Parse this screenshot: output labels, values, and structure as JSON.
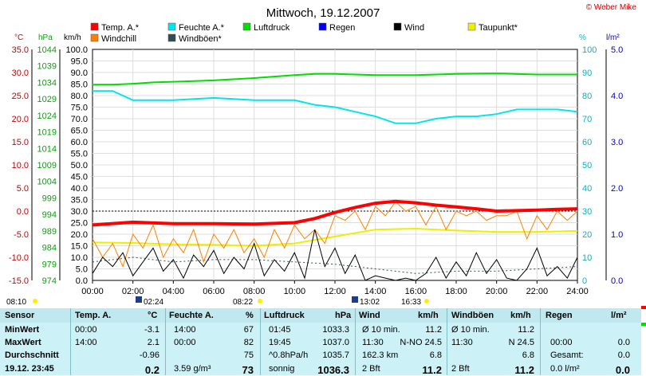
{
  "header": {
    "title": "Mittwoch, 19.12.2007",
    "credit": "© Weber Mike"
  },
  "legend": [
    {
      "label": "Temp. A.*",
      "color": "#ff0000"
    },
    {
      "label": "Feuchte A.*",
      "color": "#00e5ee"
    },
    {
      "label": "Luftdruck",
      "color": "#00dd00"
    },
    {
      "label": "Regen",
      "color": "#0000ff"
    },
    {
      "label": "Wind",
      "color": "#000000"
    },
    {
      "label": "Taupunkt*",
      "color": "#eeee00"
    },
    {
      "label": "Windchill",
      "color": "#ff8000"
    },
    {
      "label": "Windböen*",
      "color": "#2f4f4f"
    }
  ],
  "axis_units": {
    "temp": "°C",
    "pressure": "hPa",
    "wind": "km/h",
    "humidity": "%",
    "rain": "l/m²"
  },
  "time_markers": {
    "sunrise": "08:10",
    "transit": "02:24",
    "light": "08:22",
    "sun_max": "13:02",
    "sunset": "16:33"
  },
  "chart_data": {
    "type": "line",
    "x_label": "time",
    "x_ticks": [
      "00:00",
      "02:00",
      "04:00",
      "06:00",
      "08:00",
      "10:00",
      "12:00",
      "14:00",
      "16:00",
      "18:00",
      "20:00",
      "22:00",
      "24:00"
    ],
    "axes": {
      "temp": {
        "min": -15,
        "max": 35,
        "ticks": [
          "35.0",
          "30.0",
          "25.0",
          "20.0",
          "15.0",
          "10.0",
          "5.0",
          "0.0",
          "-5.0",
          "-10.0",
          "-15.0"
        ]
      },
      "pressure": {
        "min": 974,
        "max": 1044,
        "ticks": [
          "1044",
          "1039",
          "1034",
          "1029",
          "1024",
          "1019",
          "1014",
          "1009",
          "1004",
          "999",
          "994",
          "989",
          "984",
          "979",
          "974"
        ]
      },
      "wind": {
        "min": 0,
        "max": 100,
        "ticks": [
          "100.0",
          "95.0",
          "90.0",
          "85.0",
          "80.0",
          "75.0",
          "70.0",
          "65.0",
          "60.0",
          "55.0",
          "50.0",
          "45.0",
          "40.0",
          "35.0",
          "30.0",
          "25.0",
          "20.0",
          "15.0",
          "10.0",
          "5.0",
          "0.0"
        ]
      },
      "humidity": {
        "min": 0,
        "max": 100,
        "ticks": [
          "100",
          "90",
          "80",
          "70",
          "60",
          "50",
          "40",
          "30",
          "20",
          "10",
          "0"
        ]
      },
      "rain": {
        "min": 0,
        "max": 5,
        "ticks": [
          "5.0",
          "4.0",
          "3.0",
          "2.0",
          "1.0",
          "0.0"
        ]
      }
    },
    "series": [
      {
        "name": "Temp. A.*",
        "axis": "temp",
        "color": "#ff0000",
        "x": [
          0,
          2,
          4,
          6,
          8,
          10,
          11,
          12,
          13,
          14,
          15,
          16,
          17,
          18,
          19,
          20,
          21,
          22,
          23,
          24
        ],
        "y": [
          -3.0,
          -2.4,
          -2.7,
          -2.7,
          -2.8,
          -2.5,
          -1.6,
          -0.3,
          0.8,
          1.7,
          2.1,
          1.8,
          1.3,
          0.9,
          0.5,
          0.0,
          0.1,
          0.2,
          0.4,
          0.5
        ]
      },
      {
        "name": "Feuchte A.*",
        "axis": "humidity",
        "color": "#00e5ee",
        "x": [
          0,
          1,
          2,
          3,
          4,
          6,
          8,
          10,
          11,
          12,
          13,
          14,
          15,
          16,
          17,
          18,
          19,
          20,
          21,
          22,
          23,
          24
        ],
        "y": [
          82,
          82,
          78,
          78,
          78,
          79,
          78,
          78,
          76,
          75,
          73,
          71,
          68,
          68,
          70,
          71,
          71,
          72,
          74,
          74,
          74,
          73
        ]
      },
      {
        "name": "Luftdruck",
        "axis": "pressure",
        "color": "#00dd00",
        "x": [
          0,
          1,
          2,
          3,
          4,
          6,
          8,
          10,
          11,
          12,
          14,
          16,
          18,
          20,
          22,
          24
        ],
        "y": [
          1033.3,
          1033.3,
          1033.6,
          1034.0,
          1034.2,
          1034.6,
          1035.3,
          1036.2,
          1036.6,
          1036.6,
          1036.2,
          1036.2,
          1036.6,
          1036.7,
          1036.4,
          1036.4
        ]
      },
      {
        "name": "Taupunkt*",
        "axis": "temp",
        "color": "#eeee00",
        "x": [
          0,
          2,
          4,
          6,
          8,
          10,
          12,
          14,
          16,
          18,
          20,
          22,
          24
        ],
        "y": [
          -6.8,
          -6.9,
          -7.2,
          -7.3,
          -7.5,
          -7.0,
          -5.5,
          -4.0,
          -3.8,
          -4.2,
          -4.5,
          -4.5,
          -4.3
        ]
      },
      {
        "name": "Windchill",
        "axis": "temp",
        "color": "#ff8000",
        "x": [
          0,
          0.5,
          1,
          1.5,
          2,
          2.5,
          3,
          3.5,
          4,
          4.5,
          5,
          5.5,
          6,
          6.5,
          7,
          7.5,
          8,
          8.5,
          9,
          9.5,
          10,
          10.5,
          11,
          11.5,
          12,
          12.5,
          13,
          13.5,
          14,
          14.5,
          15,
          15.5,
          16,
          16.5,
          17,
          17.5,
          18,
          18.5,
          19,
          19.5,
          20,
          20.5,
          21,
          21.5,
          22,
          22.5,
          23,
          23.5,
          24
        ],
        "y": [
          -6,
          -10,
          -7,
          -12,
          -5,
          -8,
          -3,
          -10,
          -6,
          -9,
          -4,
          -11,
          -5,
          -8,
          -4,
          -9,
          -6,
          -10,
          -4,
          -8,
          -3,
          -6,
          -4,
          -7,
          -1,
          -2,
          0,
          -4,
          1,
          -1,
          2,
          0,
          1,
          -3,
          1,
          -4,
          0,
          -1,
          0,
          -2,
          -1,
          -1,
          0,
          -6,
          -1,
          -4,
          0,
          -2,
          0
        ]
      },
      {
        "name": "Wind",
        "axis": "wind",
        "color": "#000000",
        "x": [
          0,
          0.5,
          1,
          1.5,
          2,
          2.5,
          3,
          3.5,
          4,
          4.5,
          5,
          5.5,
          6,
          6.5,
          7,
          7.5,
          8,
          8.5,
          9,
          9.5,
          10,
          10.5,
          11,
          11.5,
          12,
          12.5,
          13,
          13.5,
          14,
          14.5,
          15,
          15.5,
          16,
          16.5,
          17,
          17.5,
          18,
          18.5,
          19,
          19.5,
          20,
          20.5,
          21,
          21.5,
          22,
          22.5,
          23,
          23.5,
          24
        ],
        "y": [
          3,
          10,
          6,
          12,
          2,
          8,
          14,
          4,
          9,
          1,
          11,
          6,
          13,
          3,
          10,
          5,
          16,
          2,
          9,
          4,
          12,
          1,
          22,
          6,
          14,
          3,
          11,
          0,
          2,
          1,
          0,
          1,
          0,
          3,
          10,
          1,
          8,
          2,
          12,
          3,
          9,
          1,
          0,
          5,
          14,
          2,
          6,
          1,
          10
        ]
      },
      {
        "name": "Windböen*",
        "axis": "wind",
        "color": "#2f4f4f",
        "x": [
          0,
          2,
          4,
          6,
          8,
          10,
          12,
          14,
          16,
          18,
          20,
          22,
          24
        ],
        "y": [
          8,
          10,
          8,
          9,
          9,
          8,
          7,
          5,
          3,
          4,
          4,
          5,
          6
        ]
      }
    ]
  },
  "stats": {
    "headers": {
      "sensor": "Sensor",
      "temp": "Temp. A.",
      "temp_unit": "°C",
      "hum": "Feuchte A.",
      "hum_unit": "%",
      "press": "Luftdruck",
      "press_unit": "hPa",
      "wind": "Wind",
      "wind_unit": "km/h",
      "gust": "Windböen",
      "gust_unit": "km/h",
      "rain": "Regen",
      "rain_unit": "l/m²"
    },
    "rows": [
      {
        "label": "MinWert",
        "temp_t": "00:00",
        "temp_v": "-3.1",
        "hum_t": "14:00",
        "hum_v": "67",
        "press_t": "01:45",
        "press_v": "1033.3",
        "wind_t": "Ø 10 min.",
        "wind_v": "11.2",
        "gust_t": "Ø 10 min.",
        "gust_v": "11.2",
        "rain_t": "",
        "rain_v": ""
      },
      {
        "label": "MaxWert",
        "temp_t": "14:00",
        "temp_v": "2.1",
        "hum_t": "00:00",
        "hum_v": "82",
        "press_t": "19:45",
        "press_v": "1037.0",
        "wind_t": "11:30",
        "wind_v": "N-NO 24.5",
        "gust_t": "11:30",
        "gust_v": "N 24.5",
        "rain_t": "00:00",
        "rain_v": "0.0"
      },
      {
        "label": "Durchschnitt",
        "temp_t": "",
        "temp_v": "-0.96",
        "hum_t": "",
        "hum_v": "75",
        "press_t": "^0.8hPa/h",
        "press_v": "1035.7",
        "wind_t": "162.3 km",
        "wind_v": "6.8",
        "gust_t": "",
        "gust_v": "6.8",
        "rain_t": "Gesamt:",
        "rain_v": "0.0"
      },
      {
        "label": "19.12. 23:45",
        "temp_t": "",
        "temp_v": "0.2",
        "hum_t": "3.59 g/m³",
        "hum_v": "73",
        "press_t": "sonnig",
        "press_v": "1036.3",
        "wind_t": "2 Bft",
        "wind_v": "11.2",
        "gust_t": "2 Bft",
        "gust_v": "11.2",
        "rain_t": "0.0 l/m²",
        "rain_v": "0.0"
      }
    ]
  }
}
